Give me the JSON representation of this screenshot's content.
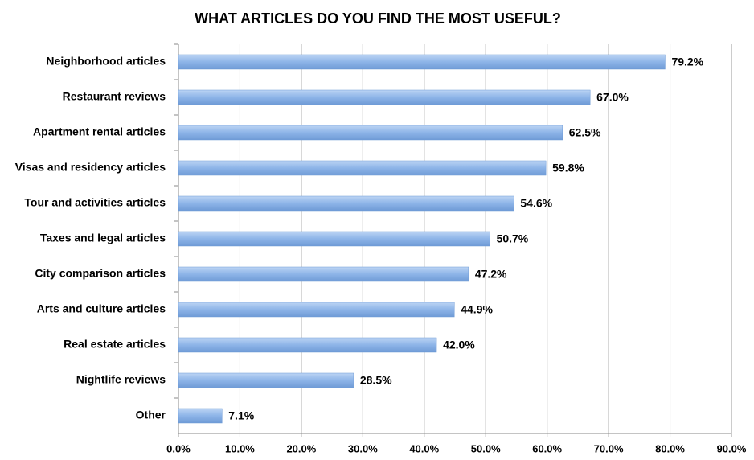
{
  "chart_data": {
    "type": "barh",
    "title": "WHAT ARTICLES DO YOU FIND THE MOST USEFUL?",
    "categories": [
      "Neighborhood articles",
      "Restaurant reviews",
      "Apartment rental articles",
      "Visas and residency articles",
      "Tour and activities articles",
      "Taxes and legal articles",
      "City comparison articles",
      "Arts and culture articles",
      "Real estate articles",
      "Nightlife reviews",
      "Other"
    ],
    "values": [
      79.2,
      67.0,
      62.5,
      59.8,
      54.6,
      50.7,
      47.2,
      44.9,
      42.0,
      28.5,
      7.1
    ],
    "value_labels": [
      "79.2%",
      "67.0%",
      "62.5%",
      "59.8%",
      "54.6%",
      "50.7%",
      "47.2%",
      "44.9%",
      "42.0%",
      "28.5%",
      "7.1%"
    ],
    "color": "#8db4e8",
    "xlim": [
      0,
      90
    ],
    "xticks": [
      {
        "value": 0,
        "label": "0.0%"
      },
      {
        "value": 10,
        "label": "10.0%"
      },
      {
        "value": 20,
        "label": "20.0%"
      },
      {
        "value": 30,
        "label": "30.0%"
      },
      {
        "value": 40,
        "label": "40.0%"
      },
      {
        "value": 50,
        "label": "50.0%"
      },
      {
        "value": 60,
        "label": "60.0%"
      },
      {
        "value": 70,
        "label": "70.0%"
      },
      {
        "value": 80,
        "label": "80.0%"
      },
      {
        "value": 90,
        "label": "90.0%"
      }
    ],
    "grid": true
  }
}
